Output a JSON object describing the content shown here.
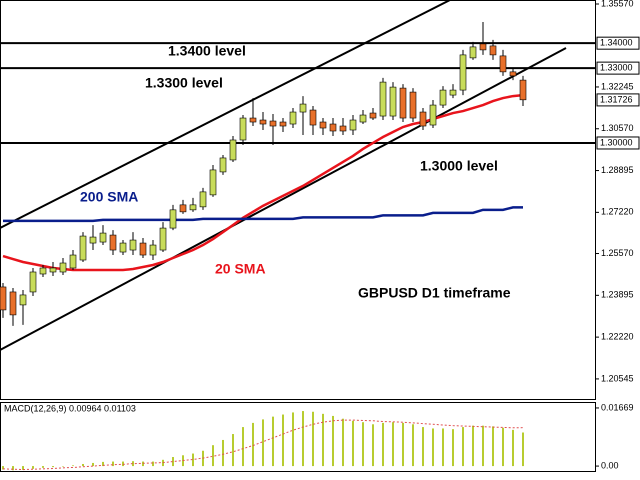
{
  "chart_data": {
    "type": "candlestick",
    "annotations": [
      "1.3400 level",
      "1.3300 level",
      "1.3000 level",
      "GBPUSD D1 timeframe"
    ],
    "up_color": "#c8dc5a",
    "down_color": "#e8702a",
    "candles": {
      "open": [
        1.2423,
        1.2403,
        1.2351,
        1.2403,
        1.2475,
        1.2483,
        1.2483,
        1.2499,
        1.2531,
        1.2599,
        1.2603,
        1.2631,
        1.2563,
        1.2571,
        1.2599,
        1.2551,
        1.2571,
        1.2659,
        1.2752,
        1.2732,
        1.2744,
        1.2792,
        1.2884,
        1.2932,
        1.3012,
        1.31,
        1.3092,
        1.3088,
        1.3084,
        1.3076,
        1.3124,
        1.3132,
        1.3084,
        1.3076,
        1.3068,
        1.3052,
        1.3084,
        1.312,
        1.3108,
        1.3108,
        1.322,
        1.3204,
        1.3124,
        1.3072,
        1.3152,
        1.3192,
        1.3212,
        1.3341,
        1.3397,
        1.3389,
        1.3349,
        1.3285,
        1.3252
      ],
      "high": [
        1.2439,
        1.2419,
        1.2411,
        1.2499,
        1.2511,
        1.2523,
        1.2539,
        1.2571,
        1.2643,
        1.2671,
        1.2671,
        1.2651,
        1.2611,
        1.2643,
        1.2619,
        1.2611,
        1.2683,
        1.2752,
        1.2772,
        1.278,
        1.282,
        1.2912,
        1.2952,
        1.3028,
        1.3112,
        1.318,
        1.3124,
        1.3116,
        1.31,
        1.314,
        1.3188,
        1.3148,
        1.31,
        1.31,
        1.31,
        1.3112,
        1.3132,
        1.314,
        1.3261,
        1.3244,
        1.3236,
        1.322,
        1.314,
        1.3172,
        1.3228,
        1.3236,
        1.3373,
        1.3405,
        1.3485,
        1.3413,
        1.3373,
        1.3301,
        1.3269
      ],
      "low": [
        1.2299,
        1.2267,
        1.2271,
        1.2387,
        1.2463,
        1.2467,
        1.2471,
        1.2491,
        1.2523,
        1.2571,
        1.2591,
        1.2551,
        1.2551,
        1.2551,
        1.2539,
        1.2531,
        1.2563,
        1.2651,
        1.2716,
        1.2724,
        1.2732,
        1.2784,
        1.2872,
        1.2924,
        1.2992,
        1.3068,
        1.3052,
        1.2992,
        1.3044,
        1.306,
        1.3032,
        1.3032,
        1.3032,
        1.3028,
        1.3032,
        1.3032,
        1.3076,
        1.3092,
        1.3092,
        1.3092,
        1.3084,
        1.3084,
        1.3052,
        1.306,
        1.314,
        1.318,
        1.3192,
        1.3333,
        1.3353,
        1.3333,
        1.3269,
        1.3252,
        1.3148
      ],
      "close": [
        1.2331,
        1.2311,
        1.2391,
        1.2483,
        1.2499,
        1.2499,
        1.2519,
        1.2551,
        1.2627,
        1.2623,
        1.2639,
        1.2571,
        1.2599,
        1.2611,
        1.2551,
        1.2591,
        1.2659,
        1.2732,
        1.2724,
        1.2752,
        1.2804,
        1.2892,
        1.294,
        1.3012,
        1.31,
        1.3084,
        1.3076,
        1.3068,
        1.3068,
        1.3124,
        1.3156,
        1.3072,
        1.306,
        1.3048,
        1.3048,
        1.3092,
        1.3112,
        1.31,
        1.3244,
        1.3224,
        1.31,
        1.31,
        1.3068,
        1.3152,
        1.3212,
        1.3212,
        1.3353,
        1.3385,
        1.3373,
        1.3353,
        1.3285,
        1.3269,
        1.3173
      ]
    },
    "series": [
      {
        "name": "20 SMA",
        "color": "#e8141c",
        "values": [
          1.2547,
          1.2535,
          1.2523,
          1.2515,
          1.2507,
          1.2499,
          1.2495,
          1.2491,
          1.2491,
          1.2491,
          1.2491,
          1.2491,
          1.2491,
          1.2495,
          1.2503,
          1.2511,
          1.2523,
          1.2539,
          1.2555,
          1.2571,
          1.2591,
          1.2615,
          1.2643,
          1.2671,
          1.27,
          1.2724,
          1.2748,
          1.2768,
          1.2788,
          1.2808,
          1.2828,
          1.2852,
          1.2876,
          1.29,
          1.2924,
          1.2948,
          1.2976,
          1.3,
          1.3024,
          1.3044,
          1.3064,
          1.3076,
          1.3084,
          1.3096,
          1.3108,
          1.312,
          1.3128,
          1.314,
          1.3152,
          1.3168,
          1.318,
          1.3188,
          1.3192
        ]
      },
      {
        "name": "200 SMA",
        "color": "#0a1e8c",
        "values": [
          1.2688,
          1.2688,
          1.2688,
          1.2688,
          1.2688,
          1.2688,
          1.2688,
          1.2688,
          1.2688,
          1.2688,
          1.2692,
          1.2692,
          1.2692,
          1.2692,
          1.2692,
          1.2692,
          1.2692,
          1.2692,
          1.2692,
          1.2692,
          1.2696,
          1.2696,
          1.2696,
          1.2696,
          1.2696,
          1.2696,
          1.2696,
          1.2696,
          1.2696,
          1.2696,
          1.2702,
          1.2702,
          1.2702,
          1.2702,
          1.2702,
          1.2702,
          1.2702,
          1.2702,
          1.271,
          1.271,
          1.271,
          1.271,
          1.271,
          1.272,
          1.272,
          1.272,
          1.272,
          1.272,
          1.2732,
          1.2732,
          1.2732,
          1.2742,
          1.2742
        ]
      }
    ],
    "levels": [
      {
        "value": 1.34,
        "label": "1.34000"
      },
      {
        "value": 1.33,
        "label": "1.33000"
      },
      {
        "value": 1.3,
        "label": "1.30000"
      }
    ],
    "current_price": {
      "value": 1.31726,
      "label": "1.31726"
    },
    "ylim": [
      1.197,
      1.3573
    ],
    "yticks": [
      {
        "value": 1.3557,
        "label": "1.35570"
      },
      1.32245,
      {
        "value": 1.3057,
        "label": "1.30570"
      },
      1.28895,
      {
        "value": 1.2722,
        "label": "1.27220"
      },
      {
        "value": 1.2557,
        "label": "1.25570"
      },
      1.23895,
      {
        "value": 1.2222,
        "label": "1.22220"
      },
      1.20545
    ],
    "macd": {
      "title": "MACD(12,26,9) 0.00964 0.01103",
      "color": "#b8cc30",
      "signal_color": "#e05050",
      "histogram": [
        -0.001,
        -0.0012,
        -0.0011,
        -0.0008,
        -0.0005,
        -0.0003,
        0.0,
        0.0002,
        0.0006,
        0.0009,
        0.0012,
        0.0013,
        0.0013,
        0.0014,
        0.0013,
        0.0013,
        0.0018,
        0.0026,
        0.0031,
        0.0036,
        0.0044,
        0.006,
        0.0075,
        0.0092,
        0.0112,
        0.0124,
        0.0134,
        0.0142,
        0.0148,
        0.0154,
        0.0158,
        0.0156,
        0.015,
        0.0144,
        0.0136,
        0.013,
        0.0126,
        0.012,
        0.0124,
        0.0126,
        0.0124,
        0.012,
        0.0112,
        0.0108,
        0.0108,
        0.0106,
        0.0112,
        0.0116,
        0.0116,
        0.0114,
        0.011,
        0.0104,
        0.00964
      ],
      "signal": [
        -0.0008,
        -0.0009,
        -0.001,
        -0.0009,
        -0.0008,
        -0.0007,
        -0.0005,
        -0.0004,
        -0.0002,
        0.0,
        0.0002,
        0.0004,
        0.0005,
        0.0007,
        0.0008,
        0.0009,
        0.001,
        0.0013,
        0.0016,
        0.0019,
        0.0023,
        0.0028,
        0.0034,
        0.0041,
        0.005,
        0.0059,
        0.007,
        0.0081,
        0.0092,
        0.0103,
        0.0112,
        0.012,
        0.0126,
        0.013,
        0.0132,
        0.0132,
        0.0131,
        0.013,
        0.0128,
        0.0127,
        0.0126,
        0.0124,
        0.0122,
        0.012,
        0.0118,
        0.0116,
        0.0115,
        0.0114,
        0.0113,
        0.0112,
        0.0111,
        0.011,
        0.01103
      ],
      "ylim": [
        -0.0017,
        0.0184
      ],
      "yticks": [
        {
          "value": 0.01669,
          "label": "0.01669"
        },
        {
          "value": 0,
          "label": "0.00"
        }
      ]
    }
  }
}
